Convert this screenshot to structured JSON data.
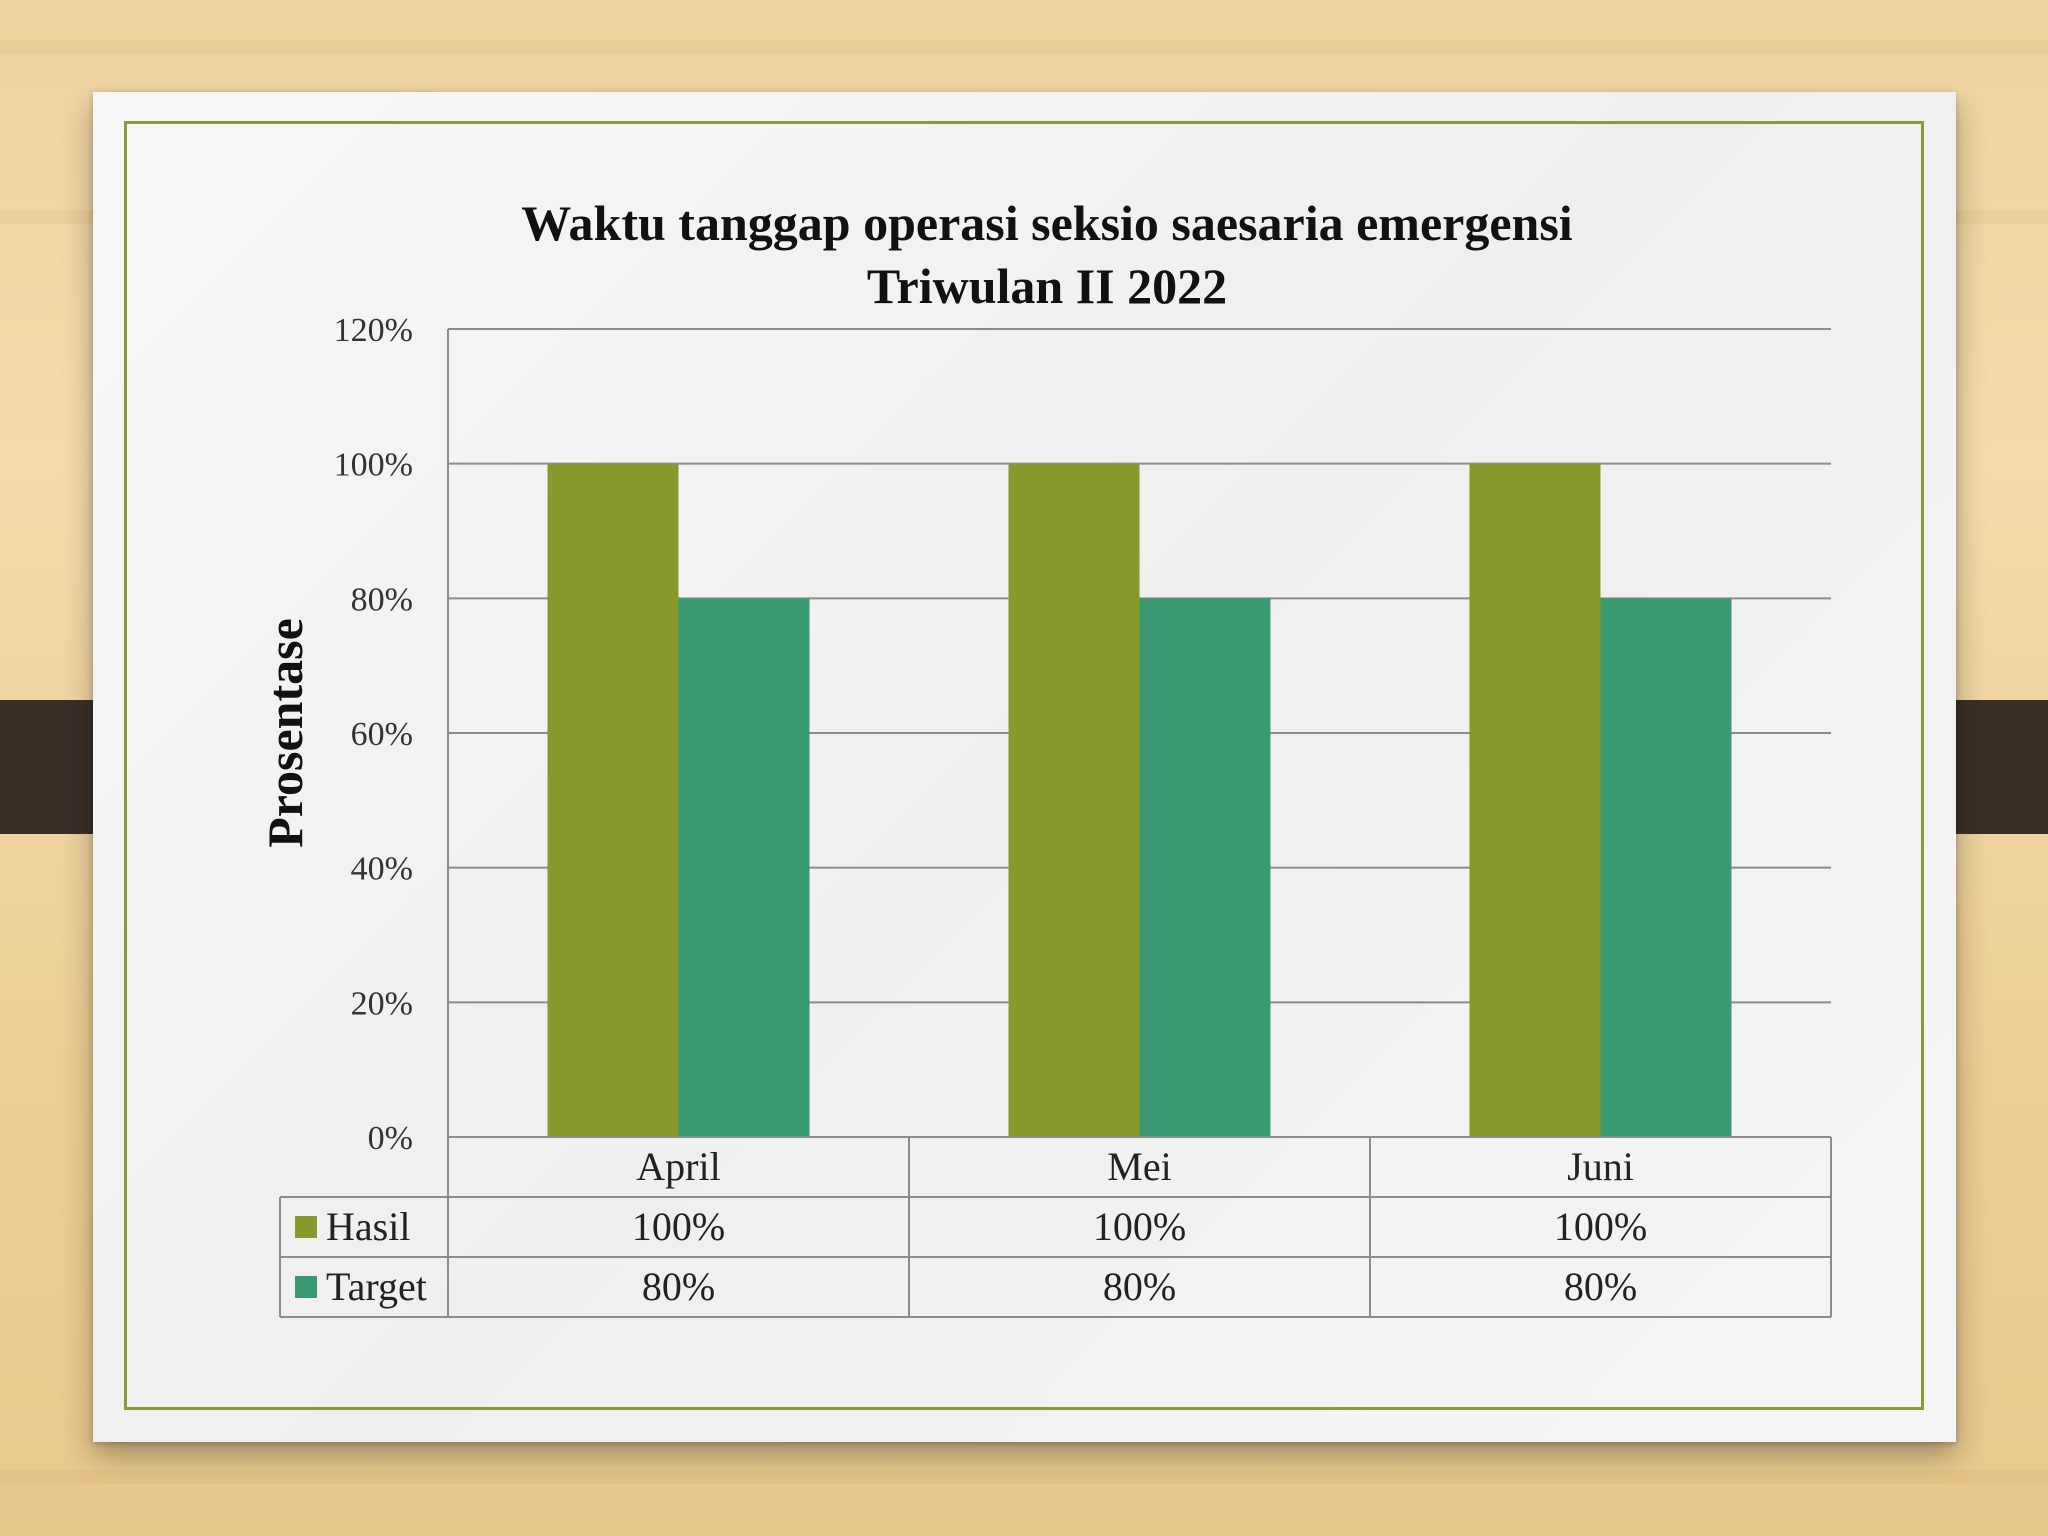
{
  "chart_data": {
    "type": "bar",
    "title": "Waktu tanggap operasi seksio saesaria emergensi",
    "subtitle": "Triwulan II 2022",
    "ylabel": "Prosentase",
    "xlabel": "",
    "categories": [
      "April",
      "Mei",
      "Juni"
    ],
    "series": [
      {
        "name": "Hasil",
        "values": [
          100,
          100,
          100
        ],
        "labels": [
          "100%",
          "100%",
          "100%"
        ],
        "color": "#87992c"
      },
      {
        "name": "Target",
        "values": [
          80,
          80,
          80
        ],
        "labels": [
          "80%",
          "80%",
          "80%"
        ],
        "color": "#3a9970"
      }
    ],
    "ylim": [
      0,
      120
    ],
    "yticks": [
      "0%",
      "20%",
      "40%",
      "60%",
      "80%",
      "100%",
      "120%"
    ],
    "grid": true,
    "legend": "data table below chart"
  }
}
